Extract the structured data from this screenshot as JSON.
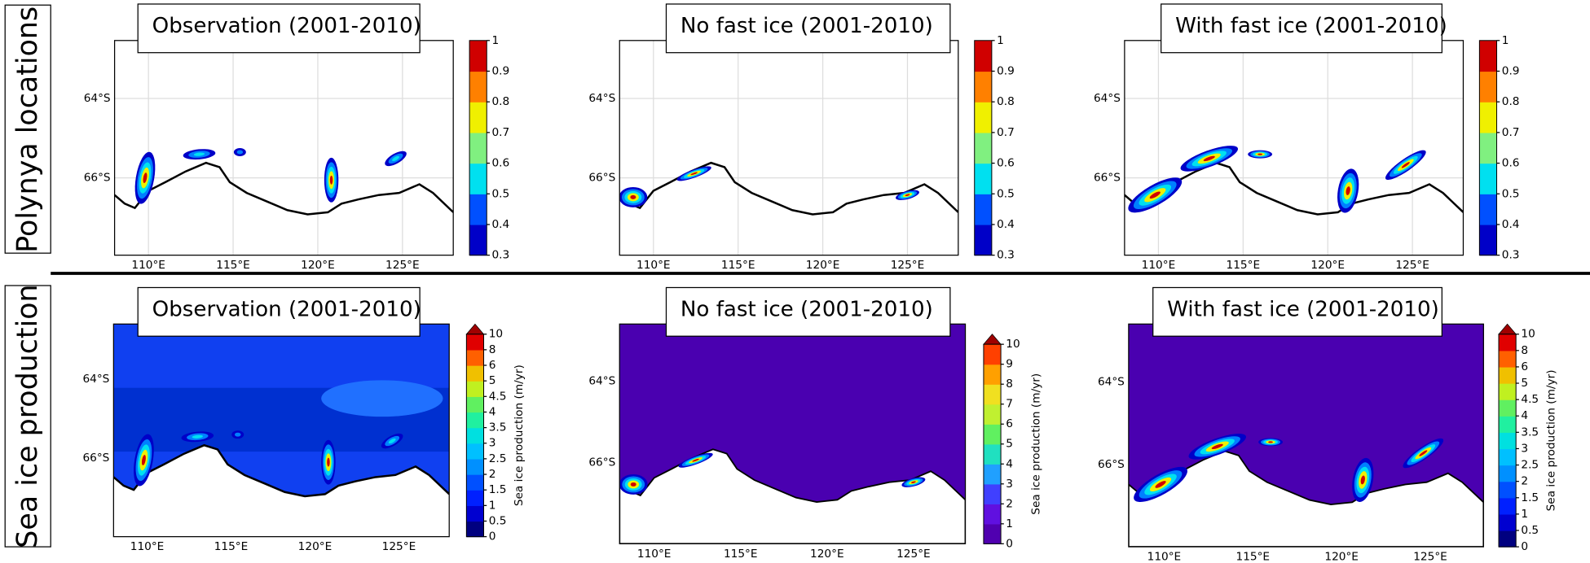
{
  "row_labels": [
    "Polynya locations",
    "Sea ice production"
  ],
  "panels": [
    {
      "title": "Observation (2001-2010)",
      "x_ticks": [
        "110°E",
        "115°E",
        "120°E",
        "125°E"
      ],
      "y_ticks": [
        "64°S",
        "66°S"
      ]
    },
    {
      "title": "No fast ice (2001-2010)",
      "x_ticks": [
        "110°E",
        "115°E",
        "120°E",
        "125°E"
      ],
      "y_ticks": [
        "64°S",
        "66°S"
      ]
    },
    {
      "title": "With fast ice (2001-2010)",
      "x_ticks": [
        "110°E",
        "115°E",
        "120°E",
        "125°E"
      ],
      "y_ticks": [
        "64°S",
        "66°S"
      ]
    },
    {
      "title": "Observation (2001-2010)",
      "x_ticks": [
        "110°E",
        "115°E",
        "120°E",
        "125°E"
      ],
      "y_ticks": [
        "64°S",
        "66°S"
      ]
    },
    {
      "title": "No fast ice (2001-2010)",
      "x_ticks": [
        "110°E",
        "115°E",
        "120°E",
        "125°E"
      ],
      "y_ticks": [
        "64°S",
        "66°S"
      ]
    },
    {
      "title": "With fast ice (2001-2010)",
      "x_ticks": [
        "110°E",
        "115°E",
        "120°E",
        "125°E"
      ],
      "y_ticks": [
        "64°S",
        "66°S"
      ]
    }
  ],
  "colorbars": [
    {
      "ticks": [
        0.3,
        0.4,
        0.5,
        0.6,
        0.7,
        0.8,
        0.9,
        1
      ]
    },
    {
      "ticks": [
        0.3,
        0.4,
        0.5,
        0.6,
        0.7,
        0.8,
        0.9,
        1
      ]
    },
    {
      "ticks": [
        0.3,
        0.4,
        0.5,
        0.6,
        0.7,
        0.8,
        0.9,
        1
      ]
    },
    {
      "ticks": [
        0,
        0.5,
        1,
        1.5,
        2,
        2.5,
        3,
        3.5,
        4,
        4.5,
        5,
        6,
        8,
        10
      ],
      "label": "Sea ice production (m/yr)"
    },
    {
      "ticks": [
        0,
        1,
        2,
        3,
        4,
        5,
        6,
        7,
        8,
        9,
        10
      ],
      "label": "Sea ice production (m/yr)"
    },
    {
      "ticks": [
        0,
        0.5,
        1,
        1.5,
        2,
        2.5,
        3,
        3.5,
        4,
        4.5,
        5,
        6,
        8,
        10
      ],
      "label": "Sea ice production (m/yr)"
    }
  ]
}
